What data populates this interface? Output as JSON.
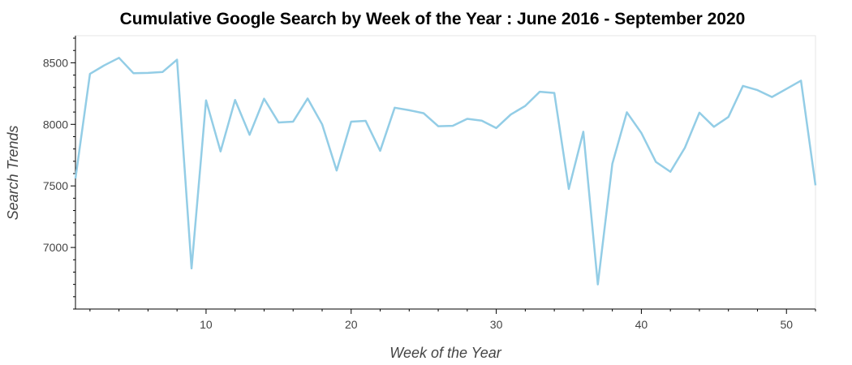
{
  "chart_data": {
    "type": "line",
    "title": "Cumulative Google Search by Week of the Year : June 2016 - September 2020",
    "xlabel": "Week of the Year",
    "ylabel": "Search Trends",
    "xlim": [
      1,
      52
    ],
    "ylim": [
      6500,
      8720
    ],
    "xticks": [
      10,
      20,
      30,
      40,
      50
    ],
    "yticks": [
      7000,
      7500,
      8000,
      8500
    ],
    "grid": false,
    "line_color": "#93cde6",
    "series": [
      {
        "x": [
          1,
          2,
          3,
          4,
          5,
          6,
          7,
          8,
          9,
          10,
          11,
          12,
          13,
          14,
          15,
          16,
          17,
          18,
          19,
          20,
          21,
          22,
          23,
          24,
          25,
          26,
          27,
          28,
          29,
          30,
          31,
          32,
          33,
          34,
          35,
          36,
          37,
          38,
          39,
          40,
          41,
          42,
          43,
          44,
          45,
          46,
          47,
          48,
          49,
          50,
          51,
          52
        ],
        "values": [
          7560,
          8410,
          8480,
          8540,
          8415,
          8418,
          8425,
          8525,
          6830,
          8195,
          7780,
          8198,
          7915,
          8208,
          8015,
          8022,
          8210,
          8000,
          7625,
          8022,
          8028,
          7785,
          8135,
          8115,
          8090,
          7985,
          7988,
          8045,
          8030,
          7970,
          8080,
          8150,
          8265,
          8255,
          7475,
          7940,
          6700,
          7680,
          8098,
          7930,
          7695,
          7615,
          7810,
          8095,
          7980,
          8060,
          8312,
          8278,
          8222,
          8288,
          8355,
          7505
        ]
      }
    ]
  }
}
